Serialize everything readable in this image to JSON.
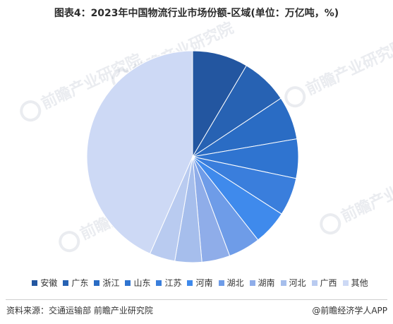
{
  "title": "图表4：2023年中国物流行业市场份额-区域(单位：万亿吨，%)",
  "source": "资料来源：交通运输部 前瞻产业研究院",
  "brand": "@前瞻经济学人APP",
  "watermark_text": "前瞻产业研究院",
  "chart_data": {
    "type": "pie",
    "title": "图表4：2023年中国物流行业市场份额-区域(单位：万亿吨，%)",
    "categories": [
      "安徽",
      "广东",
      "浙江",
      "山东",
      "江苏",
      "河南",
      "湖北",
      "湖南",
      "河北",
      "广西",
      "其他"
    ],
    "values": [
      8.5,
      7.2,
      6.6,
      6.0,
      5.8,
      5.3,
      4.9,
      4.3,
      4.1,
      3.9,
      43.4
    ],
    "colors": [
      "#2356A0",
      "#2762B3",
      "#2A6CC4",
      "#2F74D0",
      "#3A7EDC",
      "#3F8AEC",
      "#6E9CE8",
      "#8FADE9",
      "#A6BEEC",
      "#B9CBF0",
      "#CDD9F5"
    ],
    "legend_position": "bottom",
    "start_angle": "top, clockwise"
  }
}
